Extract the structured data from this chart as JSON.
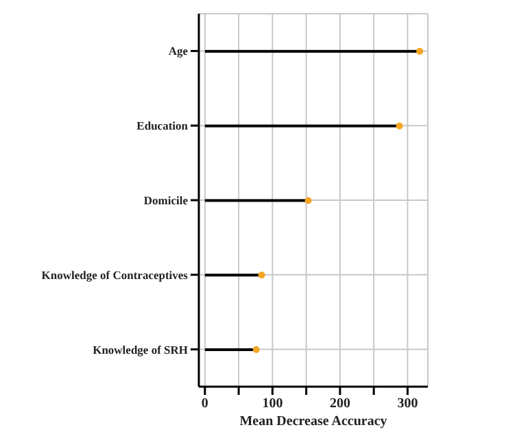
{
  "chart_data": {
    "type": "lollipop",
    "xlabel": "Mean Decrease Accuracy",
    "orientation": "horizontal",
    "categories": [
      "Age",
      "Education",
      "Domicile",
      "Knowledge of Contraceptives",
      "Knowledge of SRH"
    ],
    "series": [
      {
        "color": "#f5a623",
        "values": [
          318,
          288,
          153,
          84,
          76
        ]
      }
    ],
    "xlim": [
      -9,
      330
    ],
    "xticks": [
      0,
      {
        "value": 50,
        "label": null
      },
      100,
      {
        "value": 150,
        "label": null
      },
      200,
      {
        "value": 250,
        "label": null
      },
      300
    ],
    "grid": true,
    "marker": "circle"
  }
}
